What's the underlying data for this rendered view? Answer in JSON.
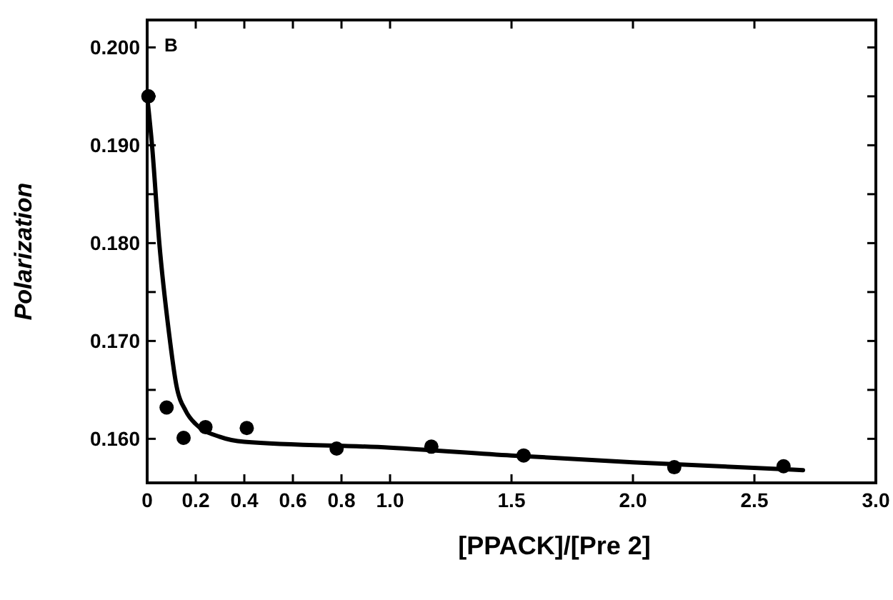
{
  "chart_data": {
    "type": "scatter",
    "xlabel": "[PPACK]/[Pre 2]",
    "ylabel": "Polarization",
    "annotations": [
      "B"
    ],
    "xlim": [
      0,
      3.0
    ],
    "xticks": [
      0,
      0.2,
      0.4,
      0.6,
      0.8,
      "1.0",
      1.5,
      "2.0",
      2.5,
      "3.0"
    ],
    "ylim": [
      0.1555,
      0.2028
    ],
    "yticks": [
      {
        "value": 0.16,
        "label": "0.160"
      },
      {
        "value": 0.165,
        "label": null
      },
      {
        "value": 0.17,
        "label": "0.170"
      },
      {
        "value": 0.175,
        "label": null
      },
      {
        "value": 0.18,
        "label": "0.180"
      },
      {
        "value": 0.185,
        "label": null
      },
      {
        "value": 0.19,
        "label": "0.190"
      },
      {
        "value": 0.195,
        "label": null
      },
      {
        "value": 0.2,
        "label": "0.200"
      }
    ],
    "marker": "circle",
    "grid": false,
    "series": [
      {
        "color": "#000000",
        "x": [
          0.005,
          0.08,
          0.15,
          0.24,
          0.41,
          0.78,
          1.17,
          1.55,
          2.17,
          2.62
        ],
        "values": [
          0.195,
          0.1632,
          0.1601,
          0.1612,
          0.1611,
          0.159,
          0.1592,
          0.1583,
          0.1571,
          0.1572
        ]
      },
      {
        "type": "line",
        "color": "#000000",
        "marker": "none",
        "x": [
          0,
          0.02,
          0.05,
          0.09,
          0.12,
          0.16,
          0.2,
          0.3,
          0.4,
          1.0,
          1.5,
          2.0,
          2.7
        ],
        "values": [
          0.195,
          0.19,
          0.18,
          0.1708,
          0.1655,
          0.1628,
          0.1615,
          0.1602,
          0.1597,
          0.1591,
          0.1583,
          0.1576,
          0.1568
        ]
      }
    ]
  }
}
